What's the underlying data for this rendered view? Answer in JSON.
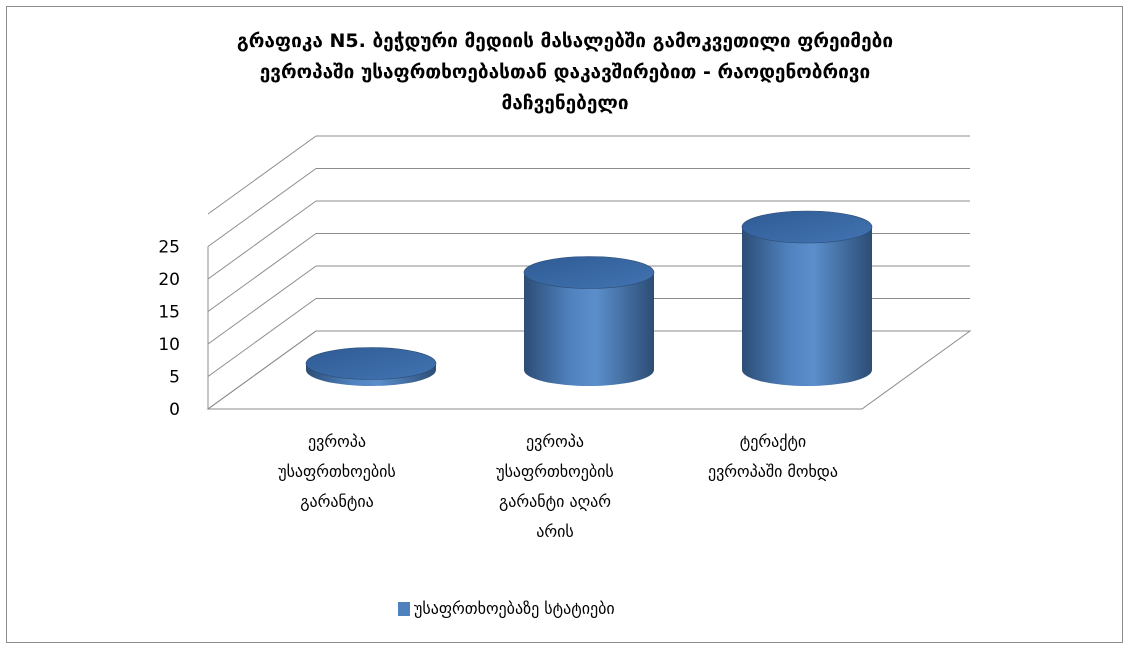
{
  "chart_data": {
    "type": "bar",
    "title_lines": [
      "გრაფიკა N5. ბეჭდური მედიის მასალებში გამოკვეთილი ფრეიმები",
      "ევროპაში უსაფრთხოებასთან დაკავშირებით - რაოდენობრივი",
      "მაჩვენებელი"
    ],
    "categories": [
      [
        "ევროპა",
        "უსაფრთხოების",
        "გარანტია"
      ],
      [
        "ევროპა",
        "უსაფრთხოების",
        "გარანტი აღარ",
        "არის"
      ],
      [
        "ტერაქტი",
        "ევროპაში მოხდა"
      ]
    ],
    "series": [
      {
        "name": "უსაფრთხოებაზე სტატიები",
        "values": [
          1,
          15,
          22
        ]
      }
    ],
    "y_ticks": [
      0,
      5,
      10,
      15,
      20,
      25
    ],
    "ylim": [
      0,
      25
    ],
    "grid": true,
    "legend_position": "bottom",
    "colors": {
      "bar": "#4f81bd",
      "bar_dark": "#2c4d75",
      "bar_top": "#3a6aa6",
      "grid": "#8c8c8c"
    }
  }
}
